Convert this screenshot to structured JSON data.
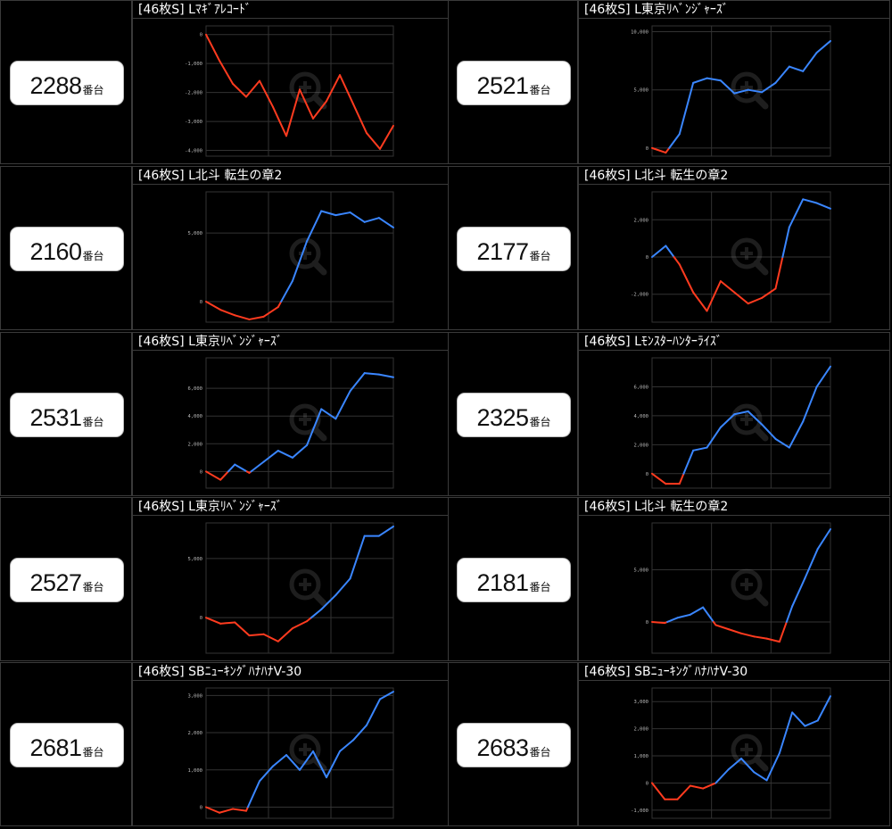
{
  "colors": {
    "positive": "#3a86ff",
    "negative": "#ff3b1f",
    "grid": "#333333",
    "tick": "#bbbbbb"
  },
  "machine_suffix": "番台",
  "watermark_icon": "zoom-in-icon",
  "cells": [
    {
      "machine_no": "2288",
      "title": "[46枚S] Lﾏｷﾞｱﾚｺｰﾄﾞ"
    },
    {
      "machine_no": "2521",
      "title": "[46枚S] L東京ﾘﾍﾞﾝｼﾞｬｰｽﾞ"
    },
    {
      "machine_no": "2160",
      "title": "[46枚S] L北斗 転生の章2"
    },
    {
      "machine_no": "2177",
      "title": "[46枚S] L北斗 転生の章2"
    },
    {
      "machine_no": "2531",
      "title": "[46枚S] L東京ﾘﾍﾞﾝｼﾞｬｰｽﾞ"
    },
    {
      "machine_no": "2325",
      "title": "[46枚S] Lﾓﾝｽﾀｰﾊﾝﾀｰﾗｲｽﾞ"
    },
    {
      "machine_no": "2527",
      "title": "[46枚S] L東京ﾘﾍﾞﾝｼﾞｬｰｽﾞ"
    },
    {
      "machine_no": "2181",
      "title": "[46枚S] L北斗 転生の章2"
    },
    {
      "machine_no": "2681",
      "title": "[46枚S] SBﾆｭｰｷﾝｸﾞﾊﾅﾊﾅV-30"
    },
    {
      "machine_no": "2683",
      "title": "[46枚S] SBﾆｭｰｷﾝｸﾞﾊﾅﾊﾅV-30"
    }
  ],
  "chart_data": [
    {
      "type": "line",
      "ylim": [
        -4200,
        300
      ],
      "yticks": [
        0,
        -1000,
        -2000,
        -3000,
        -4000
      ],
      "tick_labels": [
        "0",
        "-1,000",
        "-2,000",
        "-3,000",
        "-4,000"
      ],
      "y": [
        0,
        -900,
        -1700,
        -2150,
        -1600,
        -2500,
        -3500,
        -1900,
        -2900,
        -2300,
        -1400,
        -2400,
        -3400,
        -3950,
        -3150
      ]
    },
    {
      "type": "line",
      "ylim": [
        -700,
        10500
      ],
      "yticks": [
        0,
        5000,
        10000
      ],
      "tick_labels": [
        "0",
        "5,000",
        "10,000"
      ],
      "y": [
        0,
        -400,
        1200,
        5600,
        6000,
        5800,
        4700,
        5000,
        4800,
        5600,
        7000,
        6600,
        8200,
        9200
      ]
    },
    {
      "type": "line",
      "ylim": [
        -1500,
        8000
      ],
      "yticks": [
        0,
        5000
      ],
      "tick_labels": [
        "0",
        "5,000"
      ],
      "y": [
        0,
        -600,
        -1000,
        -1300,
        -1100,
        -400,
        1500,
        4400,
        6600,
        6300,
        6500,
        5800,
        6100,
        5400
      ]
    },
    {
      "type": "line",
      "ylim": [
        -3500,
        3500
      ],
      "yticks": [
        2000,
        0,
        -2000
      ],
      "tick_labels": [
        "2,000",
        "0",
        "-2,000"
      ],
      "y": [
        0,
        600,
        -400,
        -1900,
        -2900,
        -1300,
        -1900,
        -2500,
        -2200,
        -1700,
        1600,
        3100,
        2900,
        2600
      ]
    },
    {
      "type": "line",
      "ylim": [
        -1200,
        8200
      ],
      "yticks": [
        0,
        2000,
        4000,
        6000
      ],
      "tick_labels": [
        "0",
        "2,000",
        "4,000",
        "6,000"
      ],
      "y": [
        0,
        -600,
        500,
        -100,
        700,
        1500,
        1000,
        1900,
        4500,
        3800,
        5800,
        7100,
        7000,
        6800
      ]
    },
    {
      "type": "line",
      "ylim": [
        -1000,
        8000
      ],
      "yticks": [
        0,
        2000,
        4000,
        6000
      ],
      "tick_labels": [
        "0",
        "2,000",
        "4,000",
        "6,000"
      ],
      "y": [
        0,
        -700,
        -700,
        1600,
        1800,
        3200,
        4100,
        4300,
        3400,
        2400,
        1800,
        3600,
        6000,
        7400
      ]
    },
    {
      "type": "line",
      "ylim": [
        -3000,
        8000
      ],
      "yticks": [
        0,
        5000
      ],
      "tick_labels": [
        "0",
        "5,000"
      ],
      "y": [
        0,
        -500,
        -400,
        -1500,
        -1400,
        -2000,
        -900,
        -300,
        700,
        1900,
        3300,
        6900,
        6900,
        7700
      ]
    },
    {
      "type": "line",
      "ylim": [
        -3000,
        9500
      ],
      "yticks": [
        0,
        5000
      ],
      "tick_labels": [
        "0",
        "5,000"
      ],
      "y": [
        0,
        -100,
        400,
        700,
        1400,
        -300,
        -700,
        -1100,
        -1400,
        -1600,
        -1900,
        1500,
        4200,
        7000,
        8900
      ]
    },
    {
      "type": "line",
      "ylim": [
        -300,
        3200
      ],
      "yticks": [
        0,
        1000,
        2000,
        3000
      ],
      "tick_labels": [
        "0",
        "1,000",
        "2,000",
        "3,000"
      ],
      "y": [
        0,
        -150,
        -50,
        -100,
        700,
        1100,
        1400,
        1000,
        1500,
        800,
        1500,
        1800,
        2200,
        2900,
        3100
      ]
    },
    {
      "type": "line",
      "ylim": [
        -1300,
        3500
      ],
      "yticks": [
        3000,
        2000,
        1000,
        0,
        -1000
      ],
      "tick_labels": [
        "3,000",
        "2,000",
        "1,000",
        "0",
        "-1,000"
      ],
      "y": [
        0,
        -600,
        -600,
        -100,
        -200,
        0,
        500,
        900,
        400,
        100,
        1100,
        2600,
        2100,
        2300,
        3200
      ]
    }
  ]
}
